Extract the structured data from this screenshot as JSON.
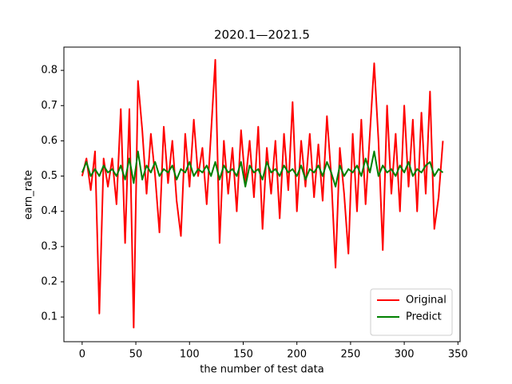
{
  "chart_data": {
    "type": "line",
    "title": "2020.1—2021.5",
    "xlabel": "the number of test data",
    "ylabel": "earn_rate",
    "x": [
      0,
      4,
      8,
      12,
      16,
      20,
      24,
      28,
      32,
      36,
      40,
      44,
      48,
      52,
      56,
      60,
      64,
      68,
      72,
      76,
      80,
      84,
      88,
      92,
      96,
      100,
      104,
      108,
      112,
      116,
      120,
      124,
      128,
      132,
      136,
      140,
      144,
      148,
      152,
      156,
      160,
      164,
      168,
      172,
      176,
      180,
      184,
      188,
      192,
      196,
      200,
      204,
      208,
      212,
      216,
      220,
      224,
      228,
      232,
      236,
      240,
      244,
      248,
      252,
      256,
      260,
      264,
      268,
      272,
      276,
      280,
      284,
      288,
      292,
      296,
      300,
      304,
      308,
      312,
      316,
      320,
      324,
      328,
      332,
      336
    ],
    "series": [
      {
        "name": "Original",
        "color": "#ff0000",
        "values": [
          0.5,
          0.55,
          0.46,
          0.57,
          0.11,
          0.55,
          0.47,
          0.55,
          0.42,
          0.69,
          0.31,
          0.69,
          0.07,
          0.77,
          0.63,
          0.45,
          0.62,
          0.5,
          0.34,
          0.64,
          0.48,
          0.6,
          0.43,
          0.33,
          0.62,
          0.47,
          0.66,
          0.5,
          0.58,
          0.42,
          0.62,
          0.83,
          0.31,
          0.6,
          0.45,
          0.58,
          0.4,
          0.63,
          0.48,
          0.6,
          0.44,
          0.64,
          0.35,
          0.58,
          0.45,
          0.6,
          0.38,
          0.62,
          0.46,
          0.71,
          0.4,
          0.6,
          0.47,
          0.62,
          0.44,
          0.59,
          0.43,
          0.67,
          0.5,
          0.24,
          0.58,
          0.45,
          0.28,
          0.62,
          0.4,
          0.66,
          0.42,
          0.62,
          0.82,
          0.6,
          0.29,
          0.7,
          0.45,
          0.62,
          0.4,
          0.7,
          0.47,
          0.66,
          0.4,
          0.68,
          0.45,
          0.74,
          0.35,
          0.44,
          0.6
        ]
      },
      {
        "name": "Predict",
        "color": "#008000",
        "values": [
          0.51,
          0.54,
          0.5,
          0.52,
          0.5,
          0.53,
          0.51,
          0.52,
          0.5,
          0.53,
          0.49,
          0.55,
          0.48,
          0.57,
          0.49,
          0.53,
          0.51,
          0.54,
          0.5,
          0.52,
          0.51,
          0.53,
          0.49,
          0.52,
          0.51,
          0.54,
          0.5,
          0.52,
          0.51,
          0.53,
          0.5,
          0.54,
          0.49,
          0.53,
          0.51,
          0.52,
          0.5,
          0.54,
          0.47,
          0.53,
          0.51,
          0.52,
          0.49,
          0.54,
          0.51,
          0.52,
          0.5,
          0.53,
          0.51,
          0.52,
          0.5,
          0.53,
          0.49,
          0.52,
          0.51,
          0.53,
          0.5,
          0.54,
          0.51,
          0.47,
          0.53,
          0.5,
          0.52,
          0.51,
          0.53,
          0.5,
          0.55,
          0.51,
          0.57,
          0.5,
          0.53,
          0.51,
          0.52,
          0.5,
          0.53,
          0.51,
          0.54,
          0.5,
          0.52,
          0.51,
          0.53,
          0.54,
          0.5,
          0.52,
          0.51
        ]
      }
    ],
    "xlim": [
      -17,
      352
    ],
    "ylim": [
      0.03,
      0.866
    ],
    "xticks": [
      0,
      50,
      100,
      150,
      200,
      250,
      300,
      350
    ],
    "yticks": [
      0.1,
      0.2,
      0.3,
      0.4,
      0.5,
      0.6,
      0.7,
      0.8
    ],
    "legend": "lower right"
  }
}
